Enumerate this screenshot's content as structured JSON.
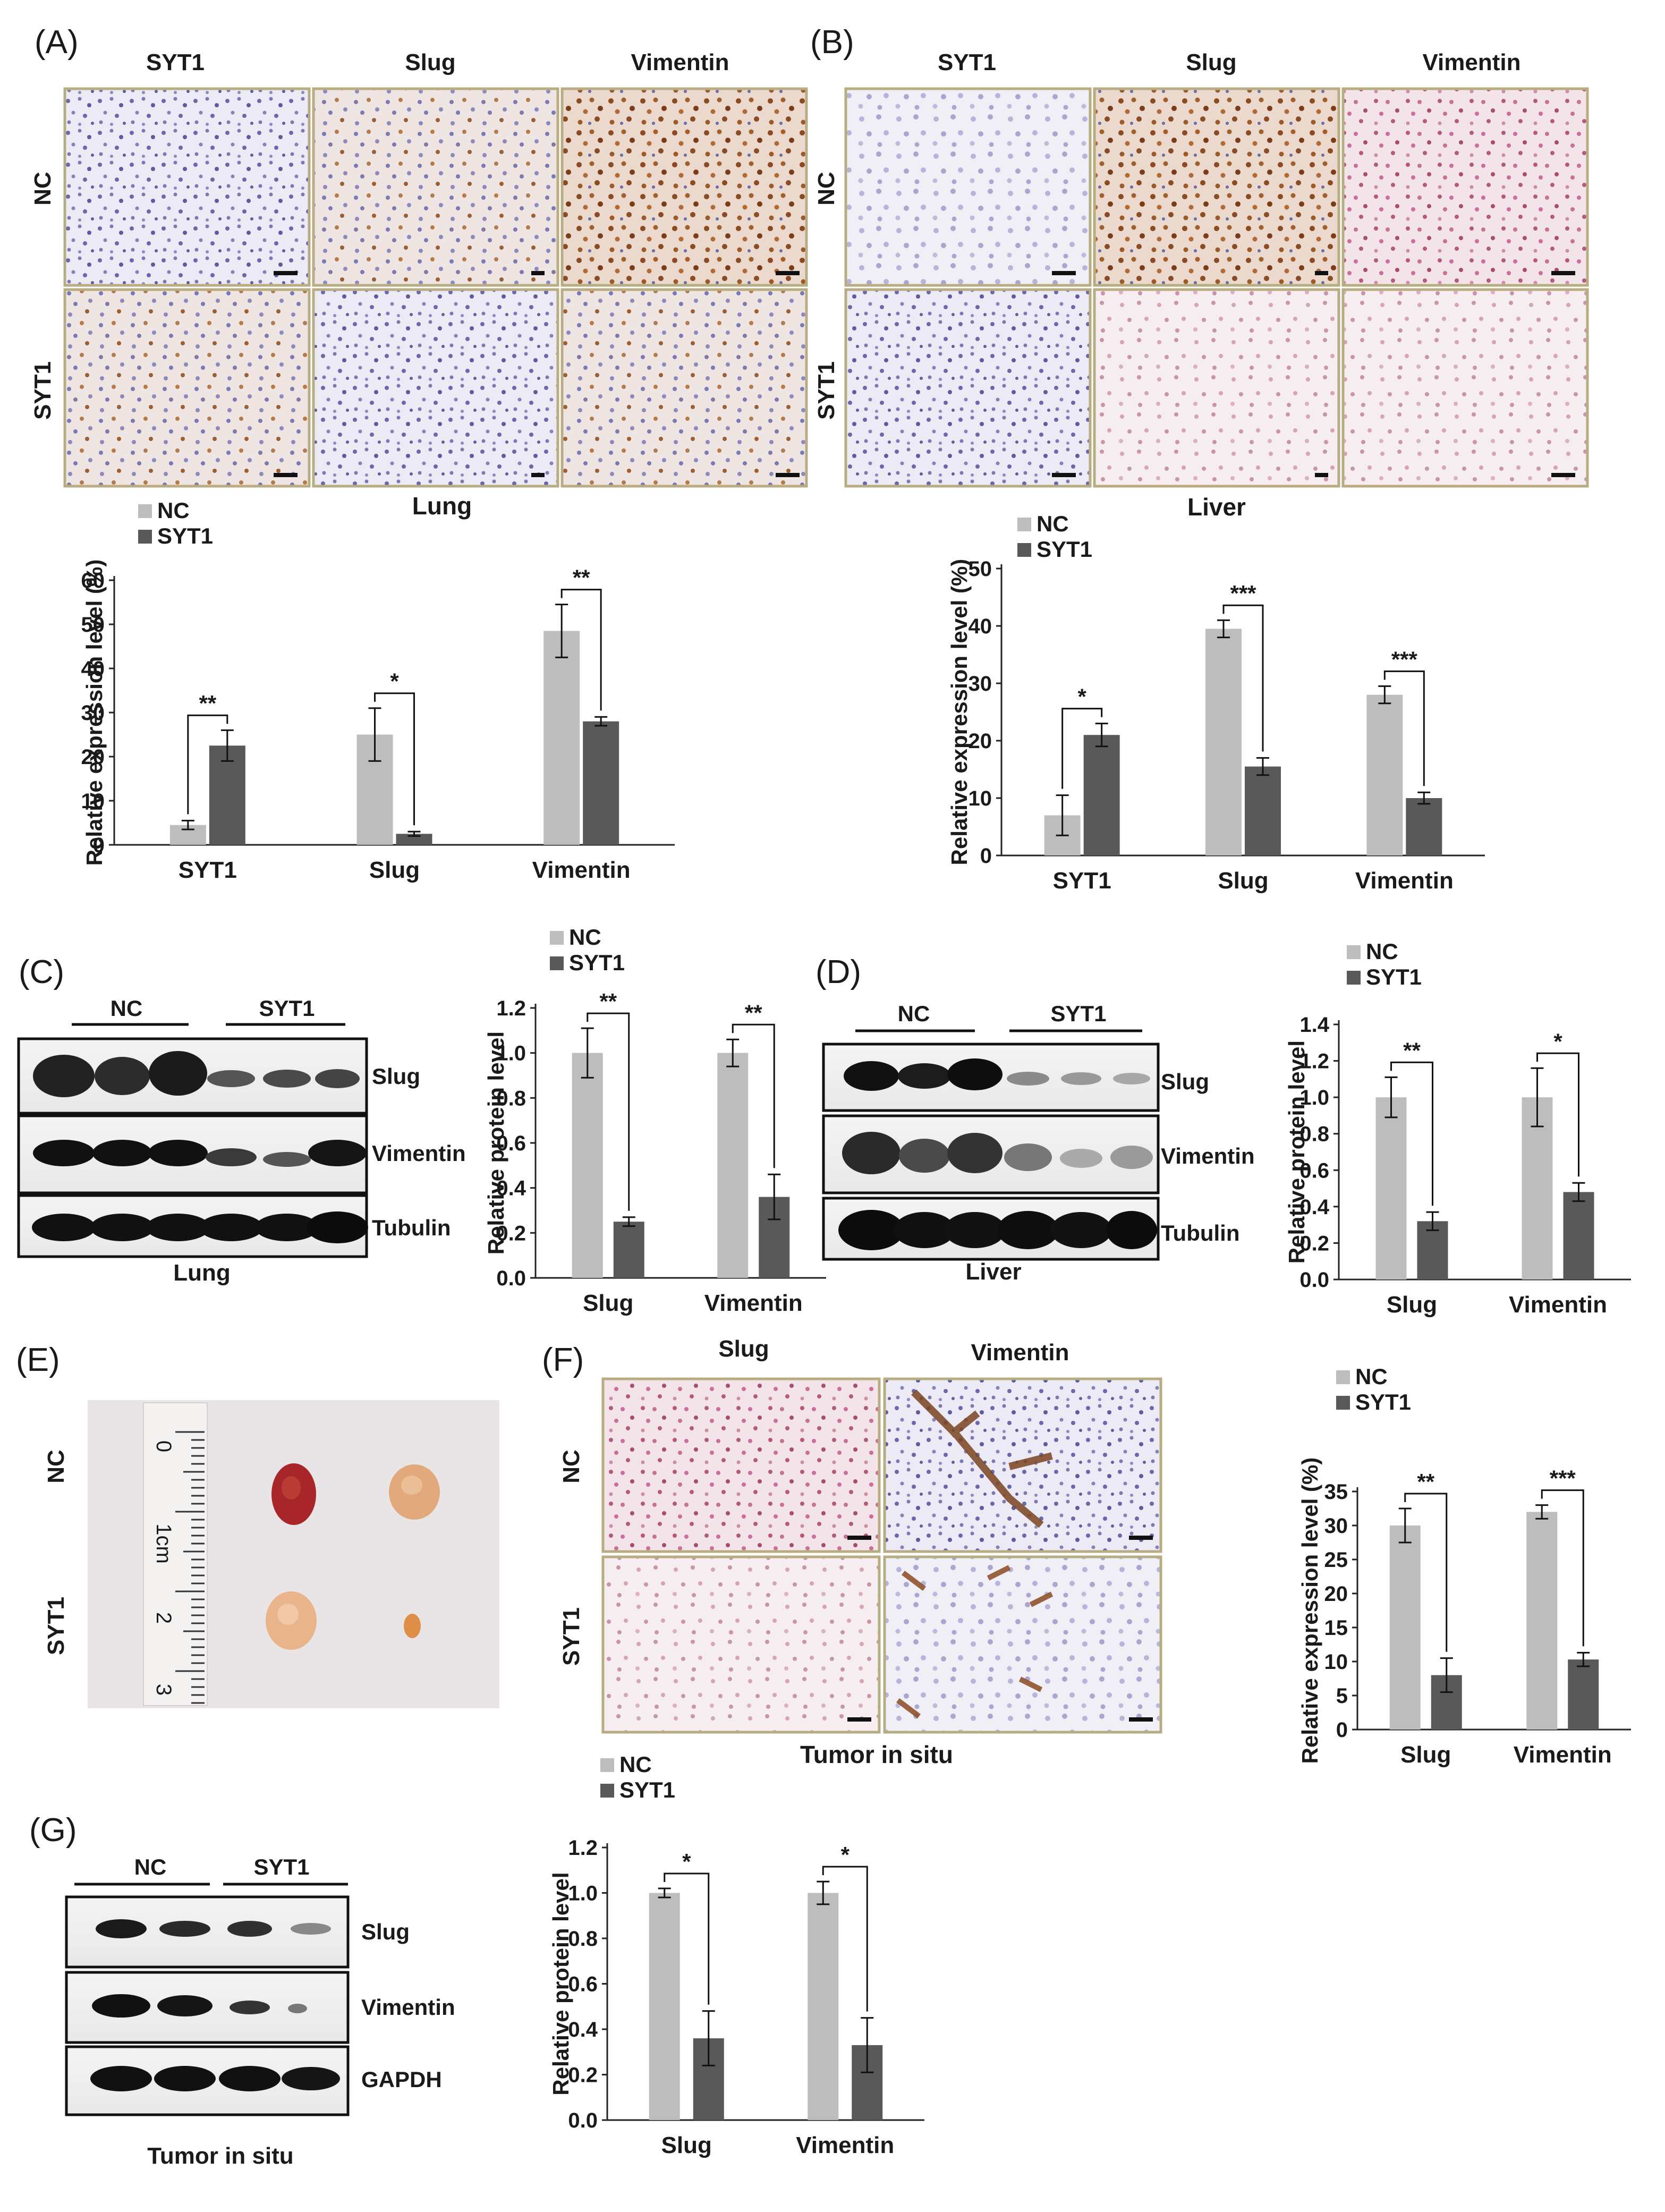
{
  "panels": {
    "A": {
      "label": "(A)",
      "stains": [
        "SYT1",
        "Slug",
        "Vimentin"
      ],
      "rows": [
        "NC",
        "SYT1"
      ],
      "tissue": "Lung"
    },
    "B": {
      "label": "(B)",
      "stains": [
        "SYT1",
        "Slug",
        "Vimentin"
      ],
      "rows": [
        "NC",
        "SYT1"
      ],
      "tissue": "Liver"
    },
    "C": {
      "label": "(C)",
      "groups": [
        "NC",
        "SYT1"
      ],
      "bands": [
        "Slug",
        "Vimentin",
        "Tubulin"
      ],
      "tissue": "Lung"
    },
    "D": {
      "label": "(D)",
      "groups": [
        "NC",
        "SYT1"
      ],
      "bands": [
        "Slug",
        "Vimentin",
        "Tubulin"
      ],
      "tissue": "Liver"
    },
    "E": {
      "label": "(E)",
      "rows": [
        "NC",
        "SYT1"
      ],
      "ruler_marks": [
        "0",
        "1cm",
        "2",
        "3"
      ]
    },
    "F": {
      "label": "(F)",
      "stains": [
        "Slug",
        "Vimentin"
      ],
      "rows": [
        "NC",
        "SYT1"
      ],
      "tissue": "Tumor in situ"
    },
    "G": {
      "label": "(G)",
      "groups": [
        "NC",
        "SYT1"
      ],
      "bands": [
        "Slug",
        "Vimentin",
        "GAPDH"
      ],
      "tissue": "Tumor in situ"
    }
  },
  "colors": {
    "nc": "#bdbdbd",
    "syt1": "#595959",
    "text": "#1a1a1a",
    "frame": "#b8ac82"
  },
  "chart_data": [
    {
      "id": "A",
      "type": "bar",
      "categories": [
        "SYT1",
        "Slug",
        "Vimentin"
      ],
      "series": [
        {
          "name": "NC",
          "values": [
            4.5,
            25,
            48.5
          ],
          "errors": [
            1,
            6,
            6
          ]
        },
        {
          "name": "SYT1",
          "values": [
            22.5,
            2.5,
            28
          ],
          "errors": [
            3.5,
            0.5,
            1
          ]
        }
      ],
      "ylabel": "Relative expression level (%)",
      "ylim": [
        0,
        60
      ],
      "yticks": [
        0,
        10,
        20,
        30,
        40,
        50,
        60
      ],
      "significance": [
        "**",
        "*",
        "**"
      ],
      "legend": "top-left"
    },
    {
      "id": "B",
      "type": "bar",
      "categories": [
        "SYT1",
        "Slug",
        "Vimentin"
      ],
      "series": [
        {
          "name": "NC",
          "values": [
            7,
            39.5,
            28
          ],
          "errors": [
            3.5,
            1.5,
            1.5
          ]
        },
        {
          "name": "SYT1",
          "values": [
            21,
            15.5,
            10
          ],
          "errors": [
            2,
            1.5,
            1
          ]
        }
      ],
      "ylabel": "Relative expression level (%)",
      "ylim": [
        0,
        50
      ],
      "yticks": [
        0,
        10,
        20,
        30,
        40,
        50
      ],
      "significance": [
        "*",
        "***",
        "***"
      ],
      "legend": "top-left"
    },
    {
      "id": "C",
      "type": "bar",
      "categories": [
        "Slug",
        "Vimentin"
      ],
      "series": [
        {
          "name": "NC",
          "values": [
            1.0,
            1.0
          ],
          "errors": [
            0.11,
            0.06
          ]
        },
        {
          "name": "SYT1",
          "values": [
            0.25,
            0.36
          ],
          "errors": [
            0.02,
            0.1
          ]
        }
      ],
      "ylabel": "Relative protein level",
      "ylim": [
        0,
        1.2
      ],
      "yticks": [
        "0.0",
        "0.2",
        "0.4",
        "0.6",
        "0.8",
        "1.0",
        "1.2"
      ],
      "significance": [
        "**",
        "**"
      ],
      "legend": "top-left"
    },
    {
      "id": "D",
      "type": "bar",
      "categories": [
        "Slug",
        "Vimentin"
      ],
      "series": [
        {
          "name": "NC",
          "values": [
            1.0,
            1.0
          ],
          "errors": [
            0.11,
            0.16
          ]
        },
        {
          "name": "SYT1",
          "values": [
            0.32,
            0.48
          ],
          "errors": [
            0.05,
            0.05
          ]
        }
      ],
      "ylabel": "Relative protein level",
      "ylim": [
        0,
        1.4
      ],
      "yticks": [
        "0.0",
        "0.2",
        "0.4",
        "0.6",
        "0.8",
        "1.0",
        "1.2",
        "1.4"
      ],
      "significance": [
        "**",
        "*"
      ],
      "legend": "top-left"
    },
    {
      "id": "F",
      "type": "bar",
      "categories": [
        "Slug",
        "Vimentin"
      ],
      "series": [
        {
          "name": "NC",
          "values": [
            30,
            32
          ],
          "errors": [
            2.5,
            1
          ]
        },
        {
          "name": "SYT1",
          "values": [
            8,
            10.3
          ],
          "errors": [
            2.5,
            1
          ]
        }
      ],
      "ylabel": "Relative expression level (%)",
      "ylim": [
        0,
        35
      ],
      "yticks": [
        0,
        5,
        10,
        15,
        20,
        25,
        30,
        35
      ],
      "significance": [
        "**",
        "***"
      ],
      "legend": "top-left"
    },
    {
      "id": "G",
      "type": "bar",
      "categories": [
        "Slug",
        "Vimentin"
      ],
      "series": [
        {
          "name": "NC",
          "values": [
            1.0,
            1.0
          ],
          "errors": [
            0.02,
            0.05
          ]
        },
        {
          "name": "SYT1",
          "values": [
            0.36,
            0.33
          ],
          "errors": [
            0.12,
            0.12
          ]
        }
      ],
      "ylabel": "Relative protein level",
      "ylim": [
        0,
        1.2
      ],
      "yticks": [
        "0.0",
        "0.2",
        "0.4",
        "0.6",
        "0.8",
        "1.0",
        "1.2"
      ],
      "significance": [
        "*",
        "*"
      ],
      "legend": "top-left"
    }
  ]
}
